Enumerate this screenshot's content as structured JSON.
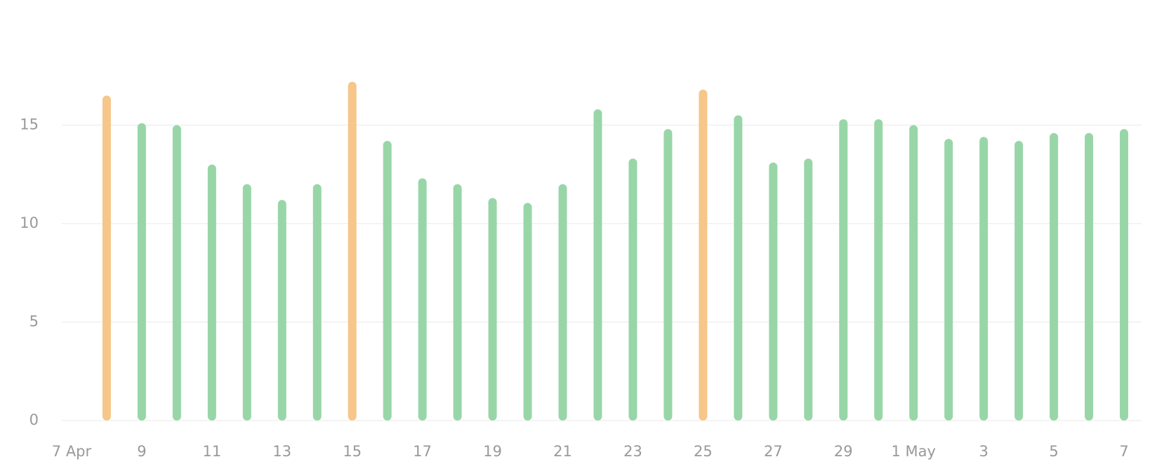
{
  "chart_data": {
    "type": "bar",
    "categories": [
      "7 Apr",
      null,
      "9",
      null,
      "11",
      null,
      "13",
      null,
      "15",
      null,
      "17",
      null,
      "19",
      null,
      "21",
      null,
      "23",
      null,
      "25",
      null,
      "27",
      null,
      "29",
      null,
      "1 May",
      null,
      "3",
      null,
      "5",
      null,
      "7"
    ],
    "values": [
      null,
      16.5,
      15.1,
      15.0,
      13.0,
      12.0,
      11.2,
      12.0,
      17.2,
      14.2,
      12.3,
      12.0,
      11.3,
      11.05,
      12.0,
      15.8,
      13.3,
      14.8,
      16.8,
      15.5,
      13.1,
      13.3,
      15.3,
      15.3,
      15.0,
      14.3,
      14.4,
      14.2,
      14.6,
      14.6,
      14.8
    ],
    "colors": [
      null,
      "#f6c68a",
      "#98d6a8",
      "#98d6a8",
      "#98d6a8",
      "#98d6a8",
      "#98d6a8",
      "#98d6a8",
      "#f6c68a",
      "#98d6a8",
      "#98d6a8",
      "#98d6a8",
      "#98d6a8",
      "#98d6a8",
      "#98d6a8",
      "#98d6a8",
      "#98d6a8",
      "#98d6a8",
      "#f6c68a",
      "#98d6a8",
      "#98d6a8",
      "#98d6a8",
      "#98d6a8",
      "#98d6a8",
      "#98d6a8",
      "#98d6a8",
      "#98d6a8",
      "#98d6a8",
      "#98d6a8",
      "#98d6a8",
      "#98d6a8"
    ],
    "ylim": [
      0,
      20
    ],
    "yticks": [
      0,
      5,
      10,
      15
    ],
    "grid": true
  }
}
